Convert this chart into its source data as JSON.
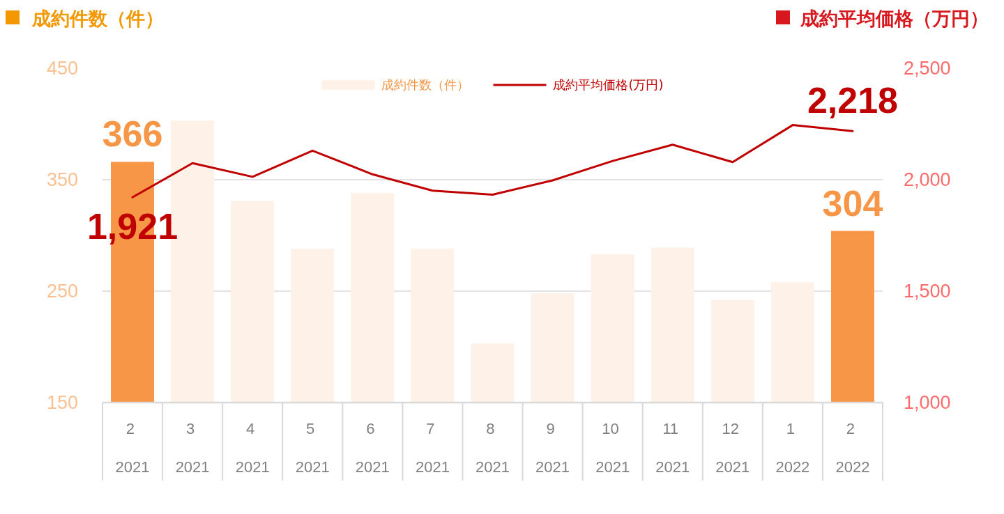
{
  "chart_data": {
    "type": "bar",
    "ylabel": "成約件数（件）",
    "y2label": "成約平均価格（万円）",
    "categories": [
      "2\n2021",
      "3\n2021",
      "4\n2021",
      "5\n2021",
      "6\n2021",
      "7\n2021",
      "8\n2021",
      "9\n2021",
      "10\n2021",
      "11\n2021",
      "12\n2021",
      "1\n2022",
      "2\n2022"
    ],
    "series": [
      {
        "name": "成約件数（件）",
        "color": "#fdf1e8",
        "colors": [
          "#f79646",
          "#fdf1e8",
          "#fdf1e8",
          "#fdf1e8",
          "#fdf1e8",
          "#fdf1e8",
          "#fdf1e8",
          "#fdf1e8",
          "#fdf1e8",
          "#fdf1e8",
          "#fdf1e8",
          "#fdf1e8",
          "#f79646"
        ],
        "values": [
          366,
          403,
          331,
          288,
          338,
          288,
          203,
          248,
          283,
          289,
          242,
          258,
          304
        ],
        "value_labels": [
          "366",
          null,
          null,
          null,
          null,
          null,
          null,
          null,
          null,
          null,
          null,
          null,
          "304"
        ]
      },
      {
        "name": "成約平均価格(万円)",
        "type": "line",
        "axis": "y2",
        "color": "#c00000",
        "values": [
          1921,
          2074,
          2013,
          2130,
          2024,
          1951,
          1933,
          1997,
          2084,
          2157,
          2079,
          2245,
          2218
        ],
        "value_labels": [
          "1,921",
          null,
          null,
          null,
          null,
          null,
          null,
          null,
          null,
          null,
          null,
          null,
          "2,218"
        ]
      }
    ],
    "ylim": [
      150,
      450
    ],
    "yticks": [
      150,
      250,
      350,
      450
    ],
    "y2lim": [
      1000,
      2500
    ],
    "y2ticks": [
      {
        "value": 1000,
        "label": "1,000"
      },
      {
        "value": 1500,
        "label": "1,500"
      },
      {
        "value": 2000,
        "label": "2,000"
      },
      {
        "value": 2500,
        "label": "2,500"
      }
    ],
    "grid": "y",
    "legend": "top"
  }
}
